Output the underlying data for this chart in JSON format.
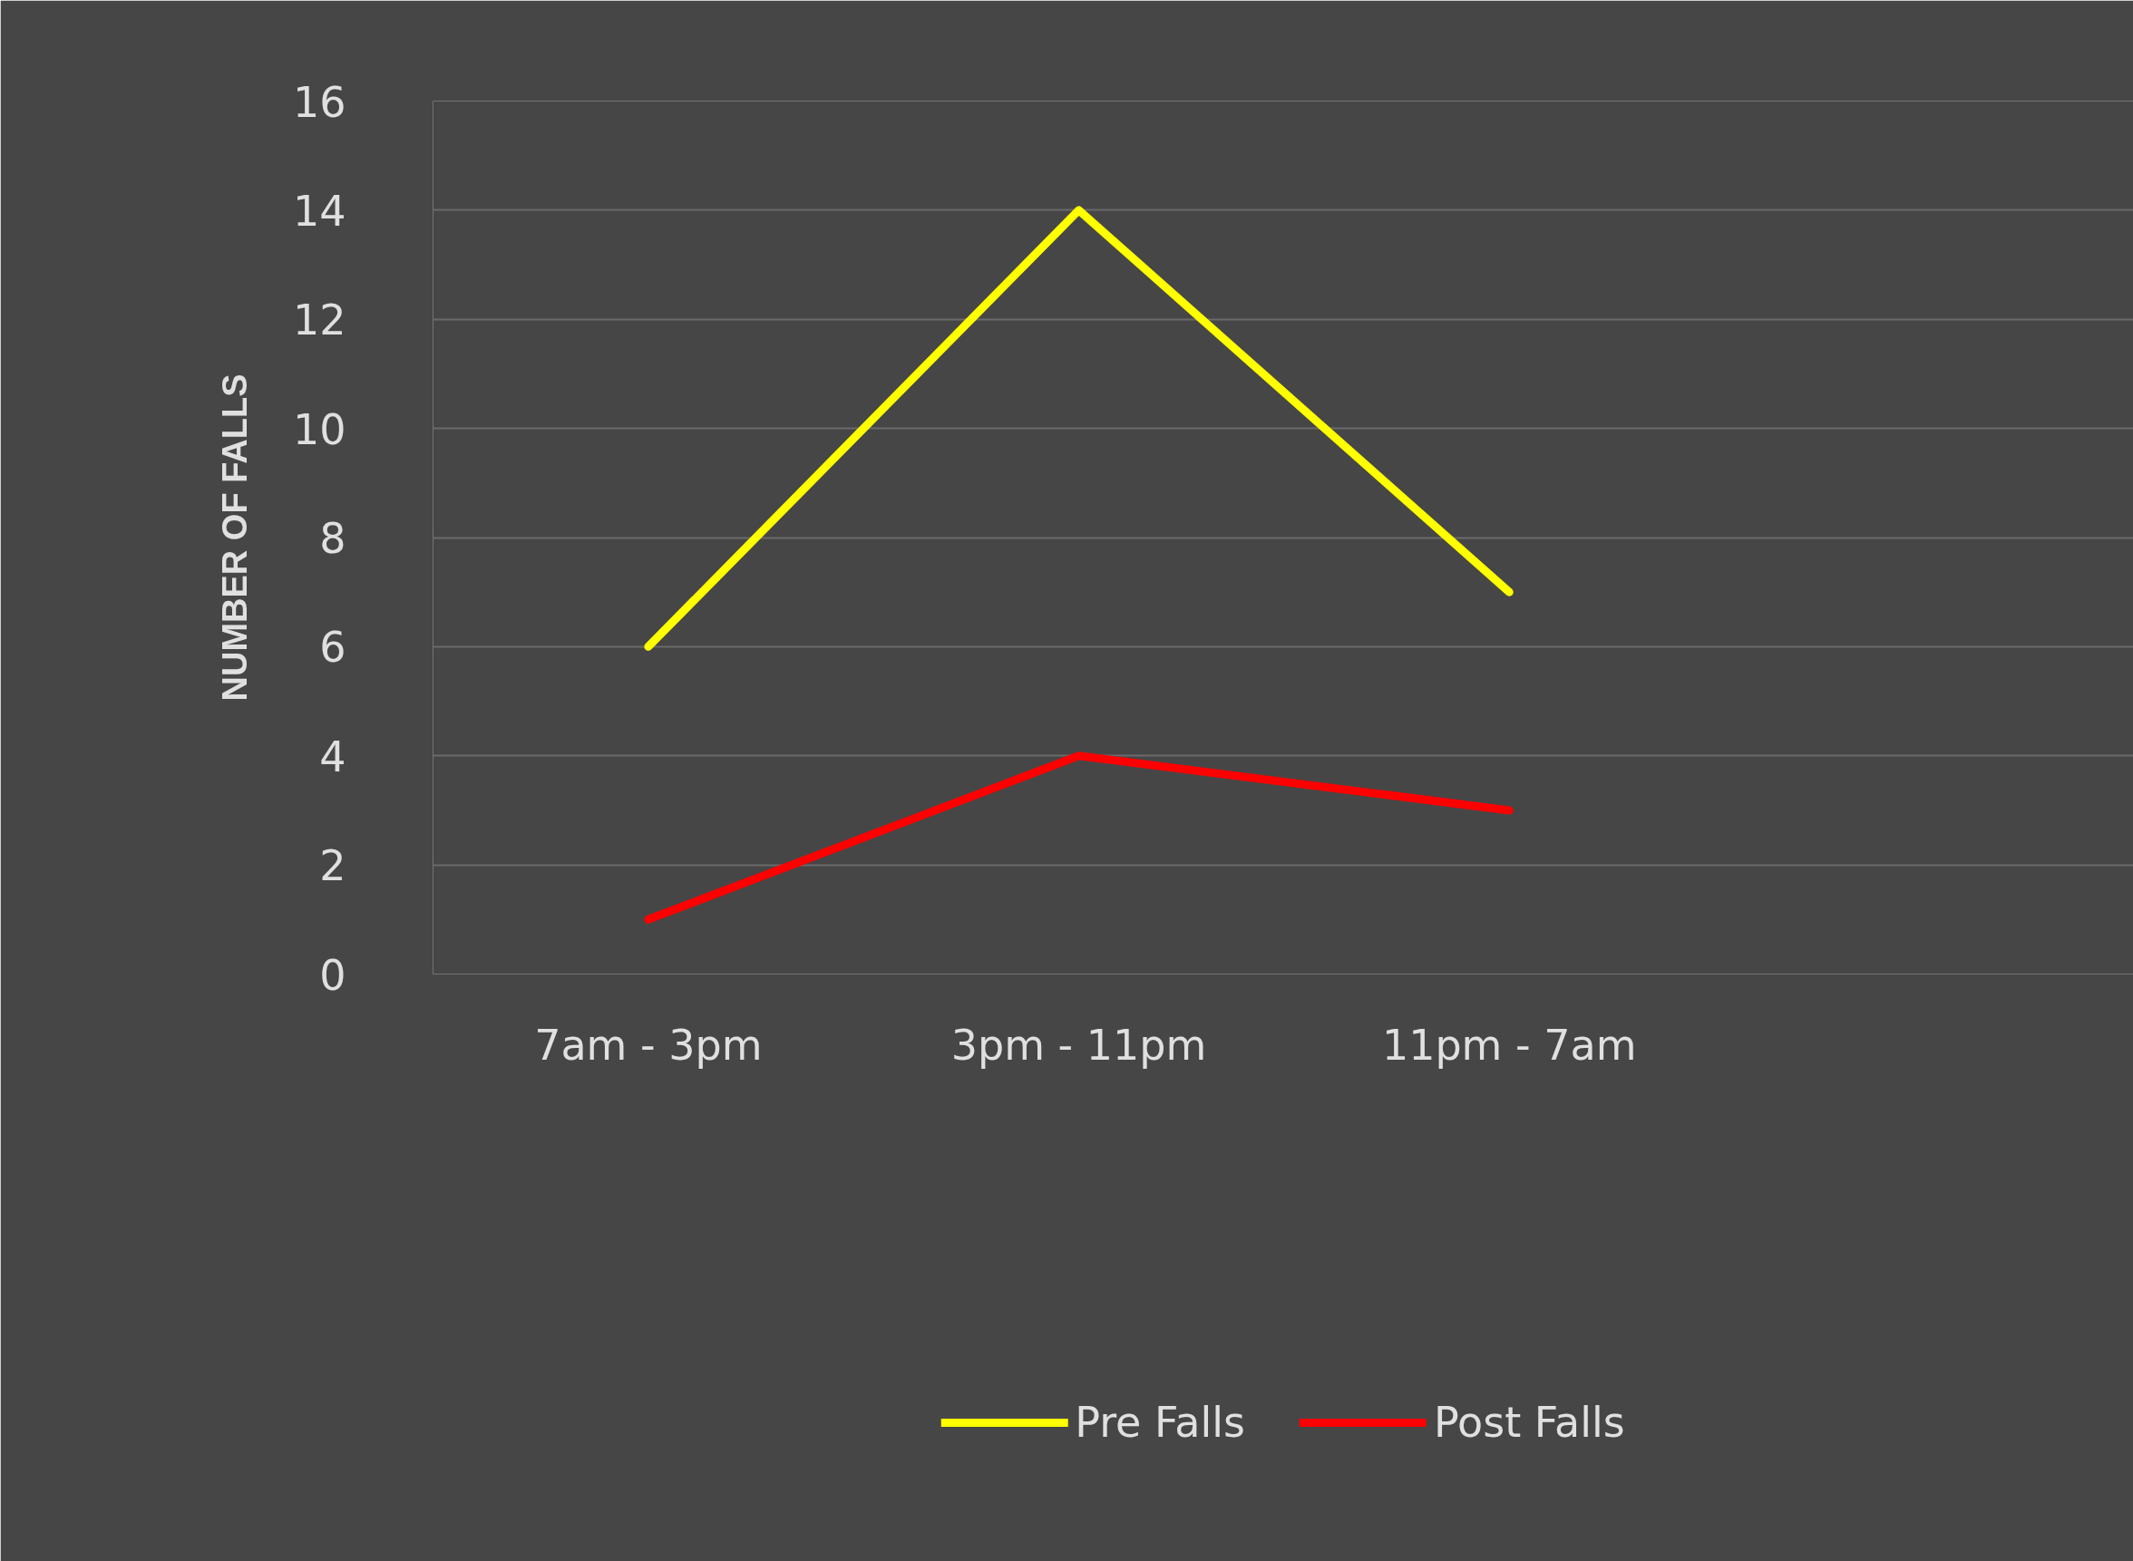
{
  "chart_data": {
    "type": "line",
    "ylabel": "NUMBER OF FALLS",
    "categories": [
      "7am - 3pm",
      "3pm - 11pm",
      "11pm - 7am"
    ],
    "series": [
      {
        "name": "Pre Falls",
        "color": "#ffff00",
        "values": [
          6,
          14,
          7
        ]
      },
      {
        "name": "Post Falls",
        "color": "#ff0000",
        "values": [
          1,
          4,
          3
        ]
      }
    ],
    "ylim": [
      0,
      16
    ],
    "yticks": [
      0,
      2,
      4,
      6,
      8,
      10,
      12,
      14,
      16
    ],
    "grid": "y",
    "legend": "bottom",
    "marker": "none",
    "line_style": "solid"
  }
}
